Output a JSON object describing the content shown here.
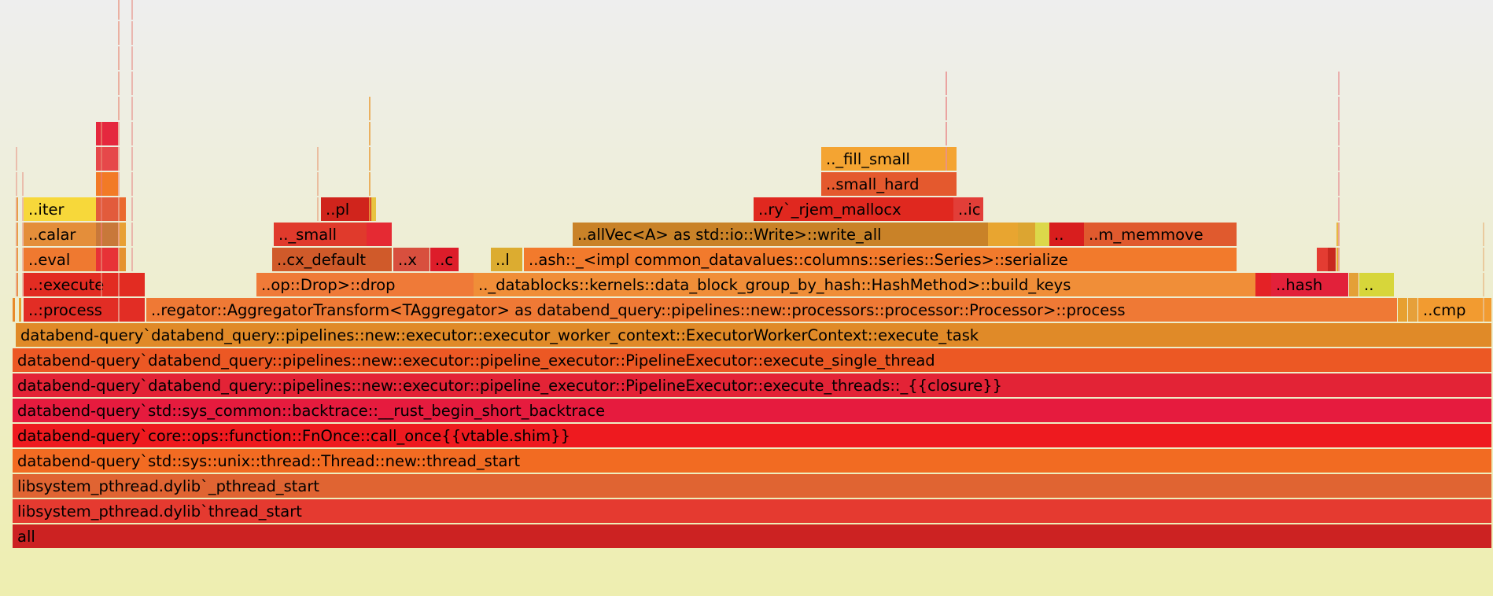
{
  "chart_data": {
    "type": "flamegraph",
    "total_samples": 1880,
    "frames": [
      {
        "depth": 0,
        "start": 0,
        "width": 1880,
        "color": "#cc2222",
        "name": "all",
        "label": "all"
      },
      {
        "depth": 1,
        "start": 0,
        "width": 1880,
        "color": "#e53a30",
        "name": "libsystem_pthread.dylib`thread_start",
        "label": "libsystem_pthread.dylib`thread_start"
      },
      {
        "depth": 2,
        "start": 0,
        "width": 1880,
        "color": "#e06432",
        "name": "libsystem_pthread.dylib`_pthread_start",
        "label": "libsystem_pthread.dylib`_pthread_start"
      },
      {
        "depth": 3,
        "start": 0,
        "width": 1880,
        "color": "#f26b22",
        "name": "databend-query`std::sys::unix::thread::Thread::new::thread_start",
        "label": "databend-query`std::sys::unix::thread::Thread::new::thread_start"
      },
      {
        "depth": 4,
        "start": 0,
        "width": 1880,
        "color": "#ee1a1f",
        "name": "databend-query`core::ops::function::FnOnce::call_once{{vtable.shim}}",
        "label": "databend-query`core::ops::function::FnOnce::call_once{{vtable.shim}}"
      },
      {
        "depth": 5,
        "start": 0,
        "width": 1880,
        "color": "#e61b3e",
        "name": "databend-query`std::sys_common::backtrace::__rust_begin_short_backtrace",
        "label": "databend-query`std::sys_common::backtrace::__rust_begin_short_backtrace"
      },
      {
        "depth": 6,
        "start": 0,
        "width": 1880,
        "color": "#e32336",
        "name": "databend-query`databend_query::pipelines::new::executor::pipeline_executor::PipelineExecutor::execute_threads::_{{closure}}",
        "label": "databend-query`databend_query::pipelines::new::executor::pipeline_executor::PipelineExecutor::execute_threads::_{{closure}}"
      },
      {
        "depth": 7,
        "start": 0,
        "width": 1880,
        "color": "#ec5824",
        "name": "databend-query`databend_query::pipelines::new::executor::pipeline_executor::PipelineExecutor::execute_single_thread",
        "label": "databend-query`databend_query::pipelines::new::executor::pipeline_executor::PipelineExecutor::execute_single_thread"
      },
      {
        "depth": 8,
        "start": 4,
        "width": 1876,
        "color": "#e08a28",
        "name": "databend-query`databend_query::pipelines::new::executor::executor_worker_context::ExecutorWorkerContext::execute_task",
        "label": "databend-query`databend_query::pipelines::new::executor::executor_worker_context::ExecutorWorkerContext::execute_task"
      },
      {
        "depth": 9,
        "start": 0,
        "width": 3,
        "color": "#e88a2a",
        "name": "",
        "label": ""
      },
      {
        "depth": 9,
        "start": 8,
        "width": 3,
        "color": "#e8a030",
        "name": "",
        "label": ""
      },
      {
        "depth": 9,
        "start": 14,
        "width": 154,
        "color": "#e22d25",
        "name": "..:process",
        "label": "..:process"
      },
      {
        "depth": 9,
        "start": 170,
        "width": 1590,
        "color": "#ef7935",
        "name": "..regator::AggregatorTransform<TAggregator> as databend_query::pipelines::new::processors::processor::Processor>::process",
        "label": "..regator::AggregatorTransform<TAggregator> as databend_query::pipelines::new::processors::processor::Processor>::process"
      },
      {
        "depth": 9,
        "start": 1761,
        "width": 12,
        "color": "#e7a030",
        "name": "",
        "label": ""
      },
      {
        "depth": 9,
        "start": 1774,
        "width": 12,
        "color": "#e6a03a",
        "name": "",
        "label": ""
      },
      {
        "depth": 9,
        "start": 1787,
        "width": 93,
        "color": "#f29b30",
        "name": "..cmp",
        "label": "..cmp"
      },
      {
        "depth": 10,
        "start": 4,
        "width": 3,
        "color": "#ea8a30",
        "name": "",
        "label": ""
      },
      {
        "depth": 10,
        "start": 14,
        "width": 154,
        "color": "#e22c22",
        "name": "..:execute",
        "label": "..:execute"
      },
      {
        "depth": 10,
        "start": 310,
        "width": 276,
        "color": "#ef7a38",
        "name": "..op::Drop>::drop",
        "label": "..op::Drop>::drop"
      },
      {
        "depth": 10,
        "start": 586,
        "width": 994,
        "color": "#f08e38",
        "name": ".._datablocks::kernels::data_block_group_by_hash::HashMethod>::build_keys",
        "label": ".._datablocks::kernels::data_block_group_by_hash::HashMethod>::build_keys"
      },
      {
        "depth": 10,
        "start": 1580,
        "width": 20,
        "color": "#e42226",
        "name": "",
        "label": ""
      },
      {
        "depth": 10,
        "start": 1600,
        "width": 98,
        "color": "#e2213a",
        "name": "..hash",
        "label": "..hash"
      },
      {
        "depth": 10,
        "start": 1699,
        "width": 12,
        "color": "#e4a037",
        "name": "",
        "label": ""
      },
      {
        "depth": 10,
        "start": 1712,
        "width": 44,
        "color": "#d7d63a",
        "name": "..",
        "label": ".."
      },
      {
        "depth": 11,
        "start": 4,
        "width": 3,
        "color": "#e8962e",
        "name": "",
        "label": ""
      },
      {
        "depth": 11,
        "start": 14,
        "width": 92,
        "color": "#ef7930",
        "name": "..eval",
        "label": "..eval"
      },
      {
        "depth": 11,
        "start": 106,
        "width": 28,
        "color": "#e73237",
        "name": "",
        "label": ""
      },
      {
        "depth": 11,
        "start": 134,
        "width": 10,
        "color": "#e5922e",
        "name": "",
        "label": ""
      },
      {
        "depth": 11,
        "start": 330,
        "width": 152,
        "color": "#d05a2a",
        "name": "..cx_default",
        "label": "..cx_default"
      },
      {
        "depth": 11,
        "start": 484,
        "width": 46,
        "color": "#d84f3e",
        "name": "..x",
        "label": "..x"
      },
      {
        "depth": 11,
        "start": 531,
        "width": 36,
        "color": "#dd1d2a",
        "name": "..c",
        "label": "..c"
      },
      {
        "depth": 11,
        "start": 608,
        "width": 40,
        "color": "#dcac30",
        "name": "..l",
        "label": "..l"
      },
      {
        "depth": 11,
        "start": 650,
        "width": 906,
        "color": "#f27a2c",
        "name": "..ash::_<impl common_datavalues::columns::series::Series>::serialize",
        "label": "..ash::_<impl common_datavalues::columns::series::Series>::serialize"
      },
      {
        "depth": 11,
        "start": 1658,
        "width": 14,
        "color": "#e43c32",
        "name": "",
        "label": ""
      },
      {
        "depth": 11,
        "start": 1672,
        "width": 10,
        "color": "#c8281f",
        "name": "",
        "label": ""
      },
      {
        "depth": 11,
        "start": 1683,
        "width": 4,
        "color": "#e8aa30",
        "name": "",
        "label": ""
      },
      {
        "depth": 12,
        "start": 4,
        "width": 3,
        "color": "#e89a30",
        "name": "",
        "label": ""
      },
      {
        "depth": 12,
        "start": 14,
        "width": 92,
        "color": "#e48e3a",
        "name": "..calar",
        "label": "..calar"
      },
      {
        "depth": 12,
        "start": 106,
        "width": 28,
        "color": "#c8783a",
        "name": "",
        "label": ""
      },
      {
        "depth": 12,
        "start": 134,
        "width": 10,
        "color": "#e8a032",
        "name": "",
        "label": ""
      },
      {
        "depth": 12,
        "start": 332,
        "width": 118,
        "color": "#e03a2c",
        "name": ".._small",
        "label": ".._small"
      },
      {
        "depth": 12,
        "start": 450,
        "width": 32,
        "color": "#e52a33",
        "name": "",
        "label": ""
      },
      {
        "depth": 12,
        "start": 712,
        "width": 528,
        "color": "#c98228",
        "name": "..allVec<A> as std::io::Write>::write_all",
        "label": "..allVec<A> as std::io::Write>::write_all"
      },
      {
        "depth": 12,
        "start": 1240,
        "width": 38,
        "color": "#e8a530",
        "name": "",
        "label": ""
      },
      {
        "depth": 12,
        "start": 1278,
        "width": 22,
        "color": "#dca531",
        "name": "",
        "label": ""
      },
      {
        "depth": 12,
        "start": 1300,
        "width": 18,
        "color": "#dcd84a",
        "name": "",
        "label": ""
      },
      {
        "depth": 12,
        "start": 1318,
        "width": 44,
        "color": "#d81e1e",
        "name": "..",
        "label": ".."
      },
      {
        "depth": 12,
        "start": 1362,
        "width": 194,
        "color": "#e05a2e",
        "name": "..m_memmove",
        "label": "..m_memmove"
      },
      {
        "depth": 12,
        "start": 1683,
        "width": 4,
        "color": "#e8b840",
        "name": "",
        "label": ""
      },
      {
        "depth": 13,
        "start": 4,
        "width": 3,
        "color": "#e89a30",
        "name": "",
        "label": ""
      },
      {
        "depth": 13,
        "start": 14,
        "width": 92,
        "color": "#f7d83a",
        "name": "..iter",
        "label": "..iter"
      },
      {
        "depth": 13,
        "start": 106,
        "width": 28,
        "color": "#e25b3c",
        "name": "",
        "label": ""
      },
      {
        "depth": 13,
        "start": 134,
        "width": 10,
        "color": "#ea6a2e",
        "name": "",
        "label": ""
      },
      {
        "depth": 13,
        "start": 392,
        "width": 64,
        "color": "#d0241c",
        "name": "..pl",
        "label": "..pl"
      },
      {
        "depth": 13,
        "start": 456,
        "width": 6,
        "color": "#e8c440",
        "name": "",
        "label": ""
      },
      {
        "depth": 13,
        "start": 942,
        "width": 254,
        "color": "#e0281f",
        "name": "..ry`_rjem_mallocx",
        "label": "..ry`_rjem_mallocx"
      },
      {
        "depth": 13,
        "start": 1196,
        "width": 38,
        "color": "#e23e38",
        "name": "..ic",
        "label": "..ic"
      },
      {
        "depth": 14,
        "start": 106,
        "width": 28,
        "color": "#f27a26",
        "name": "",
        "label": ""
      },
      {
        "depth": 14,
        "start": 1028,
        "width": 172,
        "color": "#e4592e",
        "name": "..small_hard",
        "label": "..small_hard"
      },
      {
        "depth": 15,
        "start": 106,
        "width": 28,
        "color": "#e6484a",
        "name": "",
        "label": ""
      },
      {
        "depth": 15,
        "start": 1028,
        "width": 172,
        "color": "#f4a432",
        "name": ".._fill_small",
        "label": ".._fill_small"
      },
      {
        "depth": 16,
        "start": 106,
        "width": 28,
        "color": "#e5283e",
        "name": "",
        "label": ""
      }
    ]
  }
}
